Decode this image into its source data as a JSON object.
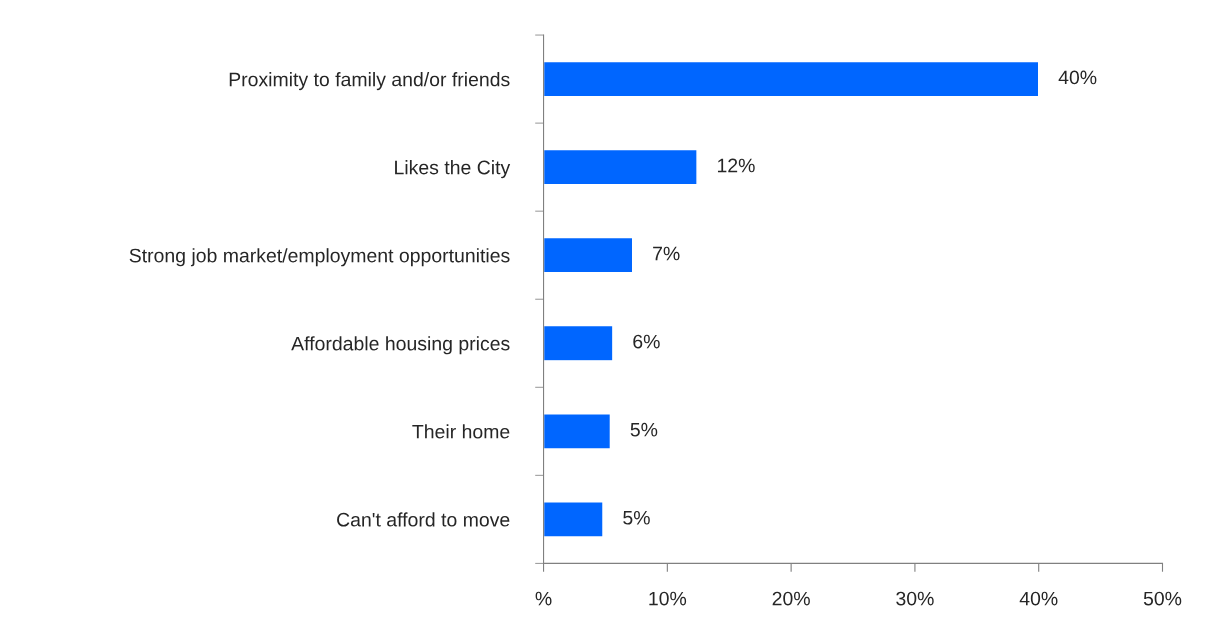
{
  "chart_data": {
    "type": "bar",
    "orientation": "horizontal",
    "categories": [
      "Proximity to family and/or friends",
      "Likes the City",
      "Strong job market/employment opportunities",
      "Affordable housing prices",
      "Their home",
      "Can't afford to move"
    ],
    "values": [
      40,
      12.4,
      7.2,
      5.6,
      5.4,
      4.8
    ],
    "value_labels": [
      "40%",
      "12%",
      "7%",
      "6%",
      "5%",
      "5%"
    ],
    "color": "#0066ff",
    "xlim": [
      0,
      50
    ],
    "xticks": [
      {
        "value": 0,
        "label": "%"
      },
      {
        "value": 10,
        "label": "10%"
      },
      {
        "value": 20,
        "label": "20%"
      },
      {
        "value": 30,
        "label": "30%"
      },
      {
        "value": 40,
        "label": "40%"
      },
      {
        "value": 50,
        "label": "50%"
      }
    ],
    "grid": false,
    "legend": false
  }
}
